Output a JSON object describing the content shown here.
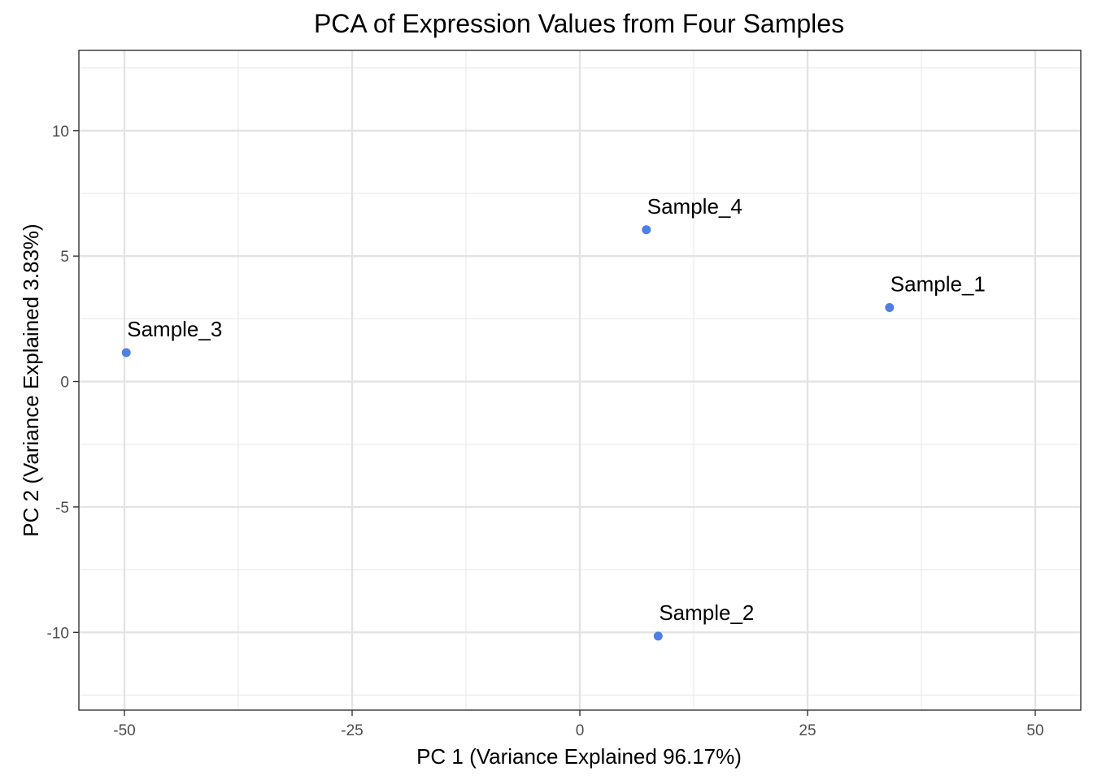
{
  "chart_data": {
    "type": "scatter",
    "title": "PCA of Expression Values from Four Samples",
    "xlabel": "PC 1 (Variance Explained 96.17%)",
    "ylabel": "PC 2 (Variance Explained 3.83%)",
    "xlim": [
      -55,
      55
    ],
    "ylim": [
      -13.1,
      13.2
    ],
    "xticks": [
      -50,
      -25,
      0,
      25,
      50
    ],
    "xtick_labels": [
      "-50",
      "-25",
      "0",
      "25",
      "50"
    ],
    "yticks": [
      -10,
      -5,
      0,
      5,
      10
    ],
    "ytick_labels": [
      "-10",
      "-5",
      "0",
      "5",
      "10"
    ],
    "grid": true,
    "point_color": "#4f7fe6",
    "points": [
      {
        "label": "Sample_1",
        "x": 34.0,
        "y": 2.95
      },
      {
        "label": "Sample_2",
        "x": 8.6,
        "y": -10.15
      },
      {
        "label": "Sample_3",
        "x": -49.8,
        "y": 1.15
      },
      {
        "label": "Sample_4",
        "x": 7.3,
        "y": 6.05
      }
    ]
  }
}
